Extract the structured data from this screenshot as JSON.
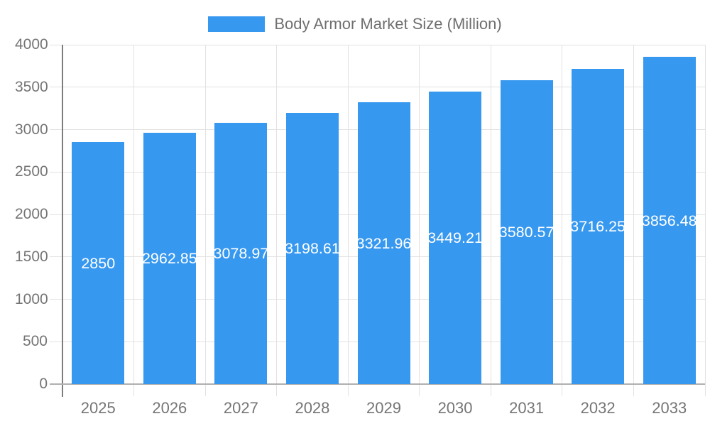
{
  "legend": {
    "swatch_icon": "legend-color-swatch",
    "label": "Body Armor Market Size (Million)"
  },
  "chart_data": {
    "type": "bar",
    "title": "Body Armor Market Size (Million)",
    "xlabel": "",
    "ylabel": "",
    "categories": [
      "2025",
      "2026",
      "2027",
      "2028",
      "2029",
      "2030",
      "2031",
      "2032",
      "2033"
    ],
    "values": [
      2850,
      2962.85,
      3078.97,
      3198.61,
      3321.96,
      3449.21,
      3580.57,
      3716.25,
      3856.48
    ],
    "value_labels": [
      "2850",
      "2962.85",
      "3078.97",
      "3198.61",
      "3321.96",
      "3449.21",
      "3580.57",
      "3716.25",
      "3856.48"
    ],
    "ylim": [
      0,
      4000
    ],
    "yticks": [
      0,
      500,
      1000,
      1500,
      2000,
      2500,
      3000,
      3500,
      4000
    ],
    "grid": "on",
    "legend_position": "top-center",
    "colors": {
      "bar": "#3798f0",
      "bar_label_text": "#ffffff",
      "axis_text": "#757575",
      "legend_text": "#6f6f6f",
      "gridline": "#e2e2e2",
      "baseline": "#b0b0b0",
      "y_axis_line": "#7d7d7d",
      "background": "#ffffff"
    }
  }
}
